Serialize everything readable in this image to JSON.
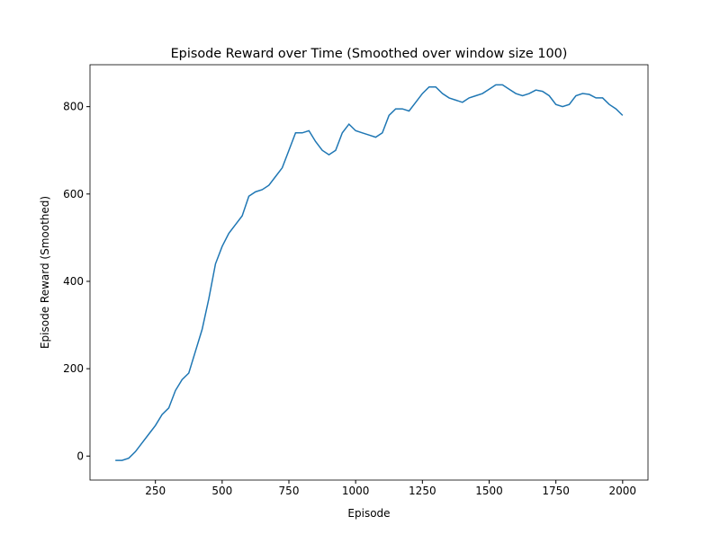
{
  "chart_data": {
    "type": "line",
    "title": "Episode Reward over Time (Smoothed over window size 100)",
    "x_label": "Episode",
    "y_label": "Episode Reward (Smoothed)",
    "x": [
      100,
      125,
      150,
      175,
      200,
      225,
      250,
      275,
      300,
      325,
      350,
      375,
      400,
      425,
      450,
      475,
      500,
      525,
      550,
      575,
      600,
      625,
      650,
      675,
      700,
      725,
      750,
      775,
      800,
      825,
      850,
      875,
      900,
      925,
      950,
      975,
      1000,
      1025,
      1050,
      1075,
      1100,
      1125,
      1150,
      1175,
      1200,
      1225,
      1250,
      1275,
      1300,
      1325,
      1350,
      1375,
      1400,
      1425,
      1450,
      1475,
      1500,
      1525,
      1550,
      1575,
      1600,
      1625,
      1650,
      1675,
      1700,
      1725,
      1750,
      1775,
      1800,
      1825,
      1850,
      1875,
      1900,
      1925,
      1950,
      1975,
      2000
    ],
    "series": [
      {
        "color": "#1f77b4",
        "values": [
          -10,
          -10,
          -5,
          10,
          30,
          50,
          70,
          95,
          110,
          150,
          175,
          190,
          240,
          290,
          360,
          440,
          480,
          510,
          530,
          550,
          595,
          605,
          610,
          620,
          640,
          660,
          700,
          740,
          740,
          745,
          720,
          700,
          690,
          700,
          740,
          760,
          745,
          740,
          735,
          730,
          740,
          780,
          795,
          795,
          790,
          810,
          830,
          845,
          845,
          830,
          820,
          815,
          810,
          820,
          825,
          830,
          840,
          850,
          850,
          840,
          830,
          825,
          830,
          838,
          835,
          825,
          805,
          800,
          805,
          825,
          830,
          828,
          820,
          820,
          805,
          795,
          780
        ]
      }
    ],
    "xlim": [
      5,
      2095
    ],
    "ylim": [
      -55,
      896
    ],
    "xticks": [
      250,
      500,
      750,
      1000,
      1250,
      1500,
      1750,
      2000
    ],
    "yticks": [
      0,
      200,
      400,
      600,
      800
    ]
  }
}
